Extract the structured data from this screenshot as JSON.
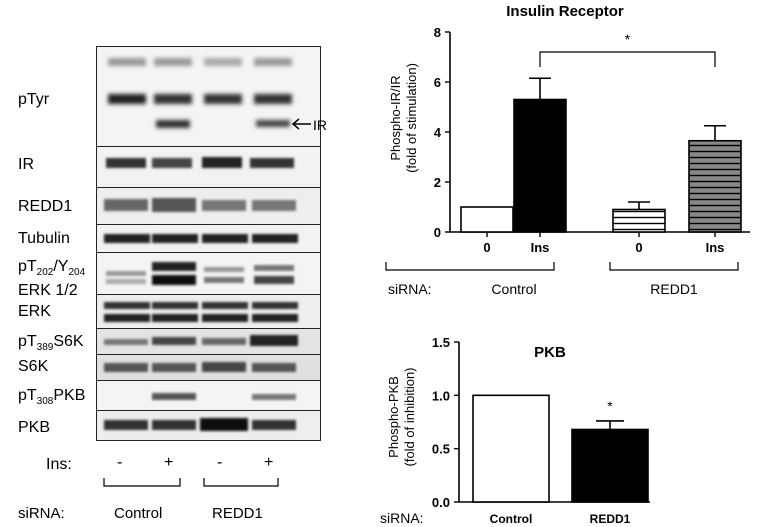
{
  "blot": {
    "rows": [
      {
        "label": "pTyr"
      },
      {
        "label": "IR"
      },
      {
        "label": "REDD1"
      },
      {
        "label": "Tubulin"
      },
      {
        "label_line1_main": "pT",
        "label_line1_sub1": "202",
        "label_line1_mid": "/Y",
        "label_line1_sub2": "204",
        "label_line2": "ERK 1/2"
      },
      {
        "label": "ERK"
      },
      {
        "label_main": "pT",
        "label_sub": "389",
        "label_rest": "S6K"
      },
      {
        "label": "S6K"
      },
      {
        "label_main": "pT",
        "label_sub": "308",
        "label_rest": "PKB"
      },
      {
        "label": "PKB"
      }
    ],
    "ir_arrow_label": "IR",
    "ins_label": "Ins:",
    "ins_values": [
      "-",
      "+",
      "-",
      "+"
    ],
    "sirna_label": "siRNA:",
    "groups": [
      "Control",
      "REDD1"
    ]
  },
  "chart_data": [
    {
      "type": "bar",
      "title": "Insulin Receptor",
      "ylabel_line1": "Phospho-IR/IR",
      "ylabel_line2": "(fold of stimulation)",
      "categories": [
        "0",
        "Ins",
        "0",
        "Ins"
      ],
      "values": [
        1.0,
        5.3,
        0.9,
        3.65
      ],
      "errors": [
        0,
        0.85,
        0.3,
        0.6
      ],
      "fills": [
        "white",
        "black",
        "horizontal-stripes-white",
        "horizontal-stripes-gray"
      ],
      "ylim": [
        0,
        8
      ],
      "yticks": [
        "0",
        "2",
        "4",
        "6",
        "8"
      ],
      "significance": "*",
      "sirna_label": "siRNA:",
      "groups": [
        "Control",
        "REDD1"
      ]
    },
    {
      "type": "bar",
      "title": "PKB",
      "ylabel_line1": "Phospho-PKB",
      "ylabel_line2": "(fold of inhibition)",
      "categories": [
        "Control",
        "REDD1"
      ],
      "values": [
        1.0,
        0.68
      ],
      "errors": [
        0,
        0.08
      ],
      "fills": [
        "white",
        "black"
      ],
      "ylim": [
        0,
        1.5
      ],
      "yticks": [
        "0.0",
        "0.5",
        "1.0",
        "1.5"
      ],
      "significance": "*",
      "sirna_label": "siRNA:"
    }
  ]
}
